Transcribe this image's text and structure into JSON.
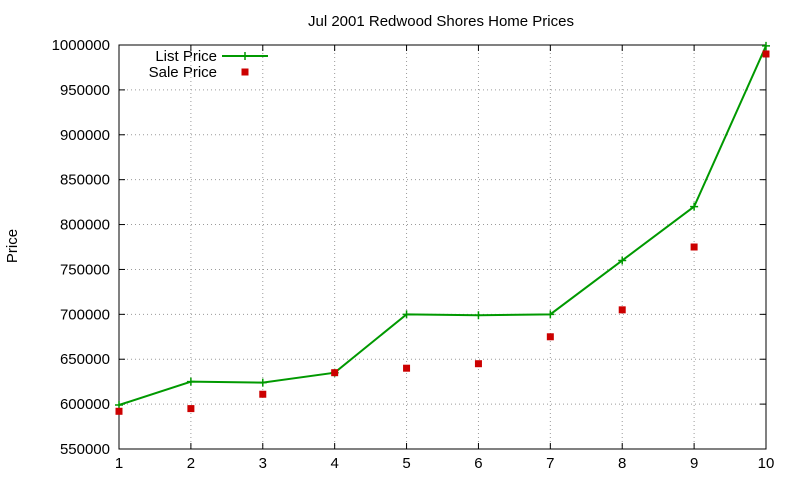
{
  "chart_data": {
    "type": "line",
    "title": "Jul 2001 Redwood Shores Home Prices",
    "xlabel": "",
    "ylabel": "Price",
    "x": [
      1,
      2,
      3,
      4,
      5,
      6,
      7,
      8,
      9,
      10
    ],
    "xlim": [
      1,
      10
    ],
    "ylim": [
      550000,
      1000000
    ],
    "xticks": [
      "1",
      "2",
      "3",
      "4",
      "5",
      "6",
      "7",
      "8",
      "9",
      "10"
    ],
    "yticks": [
      "550000",
      "600000",
      "650000",
      "700000",
      "750000",
      "800000",
      "850000",
      "900000",
      "950000",
      "1000000"
    ],
    "grid": true,
    "legend_position": "top-left",
    "series": [
      {
        "name": "List Price",
        "style": "line-with-plus-markers",
        "color": "#009900",
        "values": [
          599000,
          625000,
          624000,
          635000,
          700000,
          699000,
          700000,
          760000,
          820000,
          999000
        ]
      },
      {
        "name": "Sale Price",
        "style": "square-markers",
        "color": "#cc0000",
        "values": [
          592000,
          595000,
          611000,
          635000,
          640000,
          645000,
          675000,
          705000,
          775000,
          990000
        ]
      }
    ]
  }
}
